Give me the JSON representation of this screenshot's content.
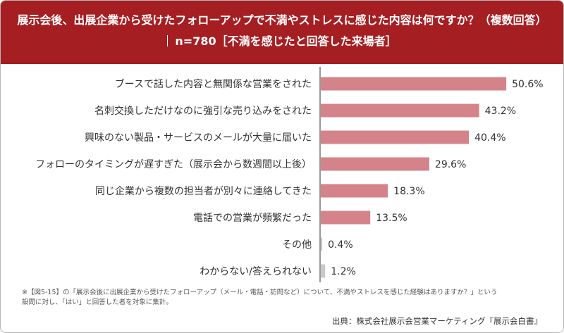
{
  "header": {
    "title": "展示会後、出展企業から受けたフォローアップで不満やストレスに感じた内容は何ですか？（複数回答）",
    "subtitle": "n=780［不満を感じたと回答した来場者］"
  },
  "chart_data": {
    "type": "bar",
    "orientation": "horizontal",
    "title": "展示会後、出展企業から受けたフォローアップで不満やストレスに感じた内容は何ですか？（複数回答）",
    "categories": [
      "ブースで話した内容と無関係な営業をされた",
      "名刺交換しただけなのに強引な売り込みをされた",
      "興味のない製品・サービスのメールが大量に届いた",
      "フォローのタイミングが遅すぎた（展示会から数週間以上後）",
      "同じ企業から複数の担当者が別々に連絡してきた",
      "電話での営業が頻繁だった",
      "その他",
      "わからない/答えられない"
    ],
    "values": [
      50.6,
      43.2,
      40.4,
      29.6,
      18.3,
      13.5,
      0.4,
      1.2
    ],
    "value_labels": [
      "50.6%",
      "43.2%",
      "40.4%",
      "29.6%",
      "18.3%",
      "13.5%",
      "0.4%",
      "1.2%"
    ],
    "unit": "%",
    "xlim": [
      0,
      100
    ],
    "grid": false,
    "colors": {
      "main": "#d4838a",
      "other": "#c8c8c8",
      "axis": "#333333"
    }
  },
  "footnote": {
    "line1": "※【図5-15】の「展示会後に出展企業から受けたフォローアップ（メール・電話・訪問など）について、不満やストレスを感じた経験はありますか？」という",
    "line2": "設問に対し、「はい」と回答した者を対象に集計。"
  },
  "source": "出典：株式会社展示会営業マーケティング『展示会白書』",
  "colors": {
    "header_bg": "#a51e22",
    "header_text": "#ffffff"
  }
}
